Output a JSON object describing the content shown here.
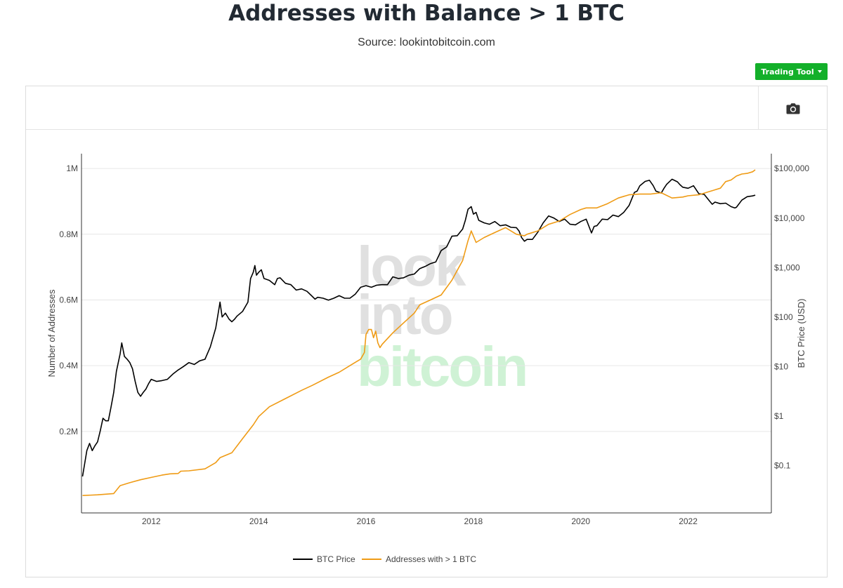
{
  "header": {
    "title": "Addresses with Balance > 1 BTC",
    "subtitle": "Source: lookintobitcoin.com",
    "trading_tool_label": "Trading Tool"
  },
  "toolbar": {
    "camera_icon": "camera-icon"
  },
  "watermark": [
    "look",
    "into",
    "bitcoin"
  ],
  "chart_data": {
    "type": "line",
    "xlabel": "",
    "ylabel_left": "Number of Addresses",
    "ylabel_right": "BTC Price (USD)",
    "x_ticks": [
      "2012",
      "2014",
      "2016",
      "2018",
      "2020",
      "2022"
    ],
    "xlim": [
      2010.7,
      2023.55
    ],
    "y_left_ticks": [
      {
        "value": 200000,
        "label": "0.2M"
      },
      {
        "value": 400000,
        "label": "0.4M"
      },
      {
        "value": 600000,
        "label": "0.6M"
      },
      {
        "value": 800000,
        "label": "0.8M"
      },
      {
        "value": 1000000,
        "label": "1M"
      }
    ],
    "y_left_lim": [
      -48000,
      1045000
    ],
    "y_right_scale": "log",
    "y_right_ticks": [
      {
        "value": 0.1,
        "label": "$0.1"
      },
      {
        "value": 1,
        "label": "$1"
      },
      {
        "value": 10,
        "label": "$10"
      },
      {
        "value": 100,
        "label": "$100"
      },
      {
        "value": 1000,
        "label": "$1,000"
      },
      {
        "value": 10000,
        "label": "$10,000"
      },
      {
        "value": 100000,
        "label": "$100,000"
      }
    ],
    "y_right_lim": [
      0.011,
      200000
    ],
    "grid": true,
    "legend_position": "bottom-center",
    "series": [
      {
        "name": "BTC Price",
        "color": "#000000",
        "axis": "right",
        "x": [
          2010.72,
          2010.8,
          2010.85,
          2010.9,
          2010.95,
          2011.0,
          2011.05,
          2011.1,
          2011.15,
          2011.2,
          2011.25,
          2011.3,
          2011.35,
          2011.42,
          2011.45,
          2011.5,
          2011.55,
          2011.6,
          2011.65,
          2011.7,
          2011.75,
          2011.8,
          2011.85,
          2011.9,
          2011.95,
          2012.0,
          2012.1,
          2012.2,
          2012.3,
          2012.4,
          2012.5,
          2012.6,
          2012.7,
          2012.8,
          2012.9,
          2013.0,
          2013.1,
          2013.2,
          2013.28,
          2013.32,
          2013.38,
          2013.45,
          2013.5,
          2013.55,
          2013.6,
          2013.7,
          2013.8,
          2013.85,
          2013.9,
          2013.93,
          2013.96,
          2014.0,
          2014.05,
          2014.1,
          2014.2,
          2014.3,
          2014.35,
          2014.4,
          2014.5,
          2014.6,
          2014.7,
          2014.8,
          2014.9,
          2015.0,
          2015.05,
          2015.1,
          2015.2,
          2015.3,
          2015.4,
          2015.5,
          2015.6,
          2015.7,
          2015.8,
          2015.9,
          2016.0,
          2016.1,
          2016.2,
          2016.3,
          2016.4,
          2016.5,
          2016.6,
          2016.7,
          2016.8,
          2016.9,
          2017.0,
          2017.05,
          2017.1,
          2017.2,
          2017.3,
          2017.4,
          2017.5,
          2017.6,
          2017.7,
          2017.8,
          2017.85,
          2017.9,
          2017.96,
          2018.0,
          2018.05,
          2018.1,
          2018.2,
          2018.3,
          2018.4,
          2018.5,
          2018.6,
          2018.7,
          2018.8,
          2018.85,
          2018.9,
          2018.95,
          2019.0,
          2019.1,
          2019.2,
          2019.3,
          2019.4,
          2019.5,
          2019.6,
          2019.7,
          2019.8,
          2019.9,
          2020.0,
          2020.1,
          2020.2,
          2020.25,
          2020.3,
          2020.4,
          2020.5,
          2020.6,
          2020.7,
          2020.8,
          2020.9,
          2021.0,
          2021.05,
          2021.1,
          2021.2,
          2021.28,
          2021.35,
          2021.4,
          2021.5,
          2021.55,
          2021.6,
          2021.7,
          2021.8,
          2021.85,
          2021.9,
          2022.0,
          2022.1,
          2022.2,
          2022.3,
          2022.4,
          2022.45,
          2022.5,
          2022.6,
          2022.7,
          2022.8,
          2022.87,
          2022.9,
          2023.0,
          2023.1,
          2023.2,
          2023.25
        ],
        "y": [
          0.06,
          0.2,
          0.28,
          0.2,
          0.25,
          0.3,
          0.5,
          0.9,
          0.8,
          0.8,
          1.5,
          3.0,
          8.0,
          18,
          30,
          16,
          14,
          12,
          9,
          5,
          3.0,
          2.5,
          3.0,
          3.5,
          4.5,
          5.5,
          5.0,
          5.2,
          5.5,
          7.0,
          8.5,
          10,
          12,
          11,
          13,
          14,
          25,
          60,
          200,
          100,
          120,
          90,
          80,
          90,
          105,
          130,
          200,
          600,
          800,
          1100,
          700,
          800,
          900,
          600,
          550,
          450,
          600,
          620,
          480,
          450,
          350,
          370,
          330,
          260,
          230,
          250,
          240,
          220,
          240,
          270,
          240,
          240,
          290,
          400,
          430,
          400,
          440,
          450,
          450,
          650,
          600,
          620,
          700,
          740,
          950,
          1000,
          1050,
          1200,
          1300,
          2200,
          2600,
          4300,
          4400,
          6000,
          9000,
          15000,
          17000,
          12000,
          13000,
          9000,
          8000,
          7500,
          8500,
          7000,
          7300,
          6500,
          6400,
          5500,
          4000,
          3400,
          3700,
          3700,
          5200,
          8000,
          11000,
          10000,
          8500,
          9500,
          7500,
          7300,
          8500,
          9500,
          5000,
          6800,
          7000,
          9500,
          9300,
          11500,
          10700,
          13000,
          18000,
          33000,
          35000,
          45000,
          55000,
          58000,
          45000,
          35000,
          32000,
          40000,
          48000,
          61000,
          54000,
          47000,
          42000,
          40000,
          45000,
          31000,
          30000,
          22000,
          19000,
          21000,
          19500,
          20000,
          17000,
          16000,
          16500,
          23000,
          27000,
          28000,
          29000
        ],
        "points": 163
      },
      {
        "name": "Addresses with > 1 BTC",
        "color": "#ef9b15",
        "axis": "left",
        "x": [
          2010.72,
          2011.0,
          2011.3,
          2011.42,
          2011.6,
          2011.8,
          2012.0,
          2012.2,
          2012.35,
          2012.5,
          2012.55,
          2012.7,
          2013.0,
          2013.2,
          2013.28,
          2013.5,
          2013.7,
          2013.9,
          2014.0,
          2014.2,
          2014.5,
          2014.8,
          2015.0,
          2015.3,
          2015.5,
          2015.7,
          2015.9,
          2015.97,
          2016.0,
          2016.05,
          2016.1,
          2016.14,
          2016.18,
          2016.22,
          2016.26,
          2016.3,
          2016.5,
          2016.7,
          2016.9,
          2017.0,
          2017.2,
          2017.4,
          2017.6,
          2017.8,
          2017.9,
          2017.96,
          2018.05,
          2018.2,
          2018.4,
          2018.6,
          2018.8,
          2018.95,
          2019.0,
          2019.2,
          2019.4,
          2019.6,
          2019.8,
          2020.0,
          2020.1,
          2020.3,
          2020.5,
          2020.7,
          2020.9,
          2021.1,
          2021.3,
          2021.5,
          2021.55,
          2021.7,
          2021.9,
          2022.0,
          2022.2,
          2022.4,
          2022.6,
          2022.7,
          2022.8,
          2022.9,
          2023.0,
          2023.1,
          2023.2,
          2023.25
        ],
        "y": [
          5000,
          7000,
          11000,
          35000,
          44000,
          53000,
          60000,
          67000,
          71000,
          72000,
          79000,
          80000,
          86000,
          105000,
          120000,
          135000,
          178000,
          220000,
          245000,
          275000,
          300000,
          325000,
          340000,
          365000,
          380000,
          400000,
          420000,
          440000,
          495000,
          510000,
          510000,
          485000,
          505000,
          470000,
          455000,
          465000,
          500000,
          530000,
          560000,
          585000,
          600000,
          615000,
          660000,
          720000,
          780000,
          810000,
          775000,
          790000,
          805000,
          820000,
          800000,
          795000,
          800000,
          810000,
          830000,
          840000,
          860000,
          875000,
          880000,
          880000,
          893000,
          910000,
          920000,
          922000,
          922000,
          926000,
          922000,
          910000,
          913000,
          917000,
          920000,
          930000,
          940000,
          960000,
          965000,
          977000,
          983000,
          985000,
          990000,
          996000
        ],
        "points": 80
      }
    ]
  }
}
